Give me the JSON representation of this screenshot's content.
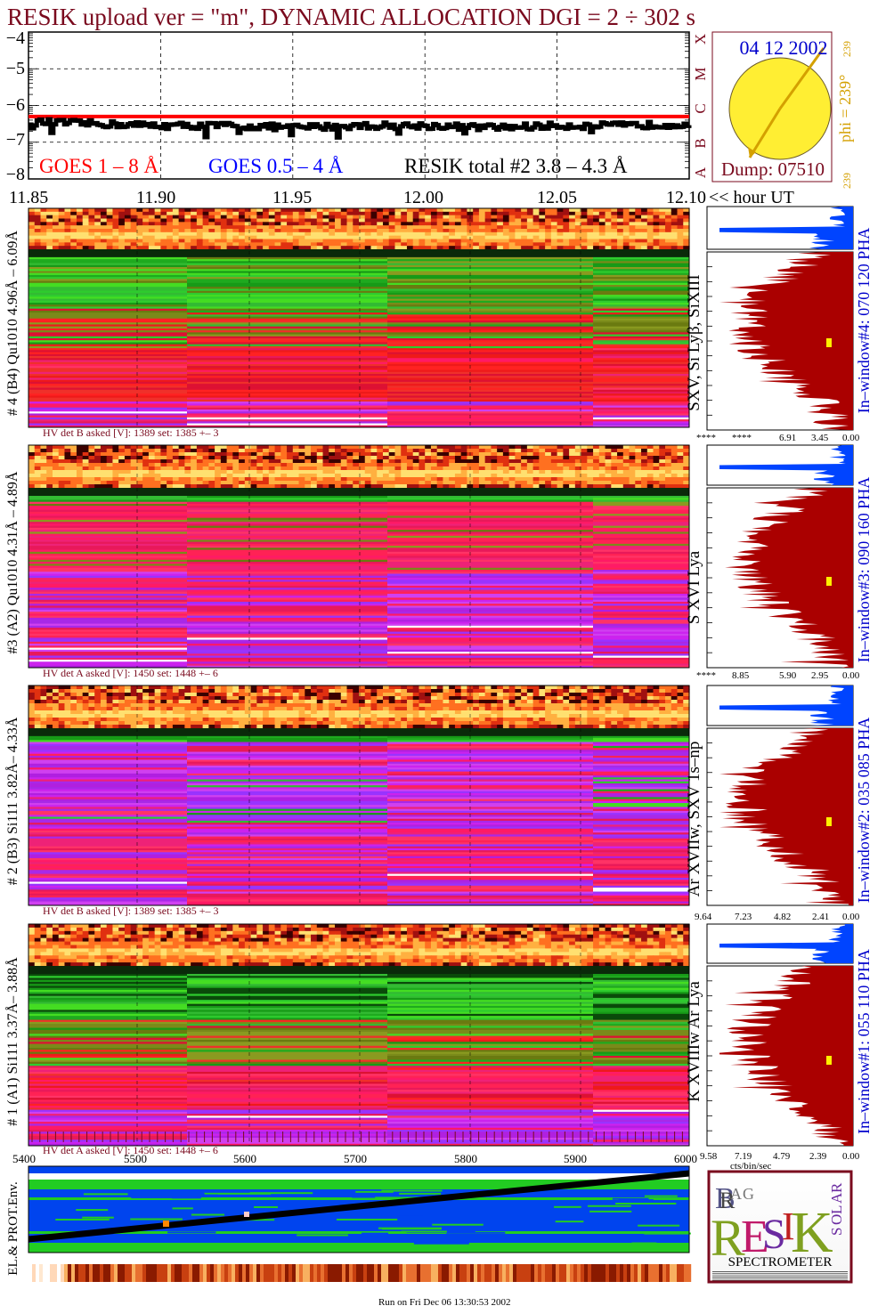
{
  "header": {
    "title": "RESIK upload ver = \"m\", DYNAMIC ALLOCATION  DGI =   2 ÷ 302 s"
  },
  "goes_panel": {
    "legend_goes_long": "GOES 1 – 8 Å",
    "legend_goes_short": "GOES 0.5 – 4 Å",
    "legend_resik": "RESIK total #2  3.8 – 4.3 Å",
    "y_ticks": [
      "−4",
      "−5",
      "−6",
      "−7",
      "−8"
    ],
    "x_ticks": [
      "11.85",
      "11.90",
      "11.95",
      "12.00",
      "12.05",
      "12.10"
    ],
    "x_unit": "<< hour UT",
    "flare_classes": [
      "X",
      "M",
      "C",
      "B",
      "A"
    ]
  },
  "sun_panel": {
    "date": "04 12 2002",
    "dump": "Dump: 07510",
    "phi_label": "phi = 239°",
    "phi_small": "239",
    "phi_bottom": "239"
  },
  "detectors": [
    {
      "left_label": "# 4 (B4) Qu1010 4.96Å – 6.09Å",
      "hv_text": "HV det B asked [V]:  1389 set:  1385 +–    3",
      "line_label": "SXV, Si Lyβ, SiXIII",
      "window_label": "In–window#4:  070 120 PHA",
      "x_ticks": [
        "****",
        "****",
        "6.91",
        "3.45",
        "0.00"
      ]
    },
    {
      "left_label": "#3 (A2) Qu1010  4.31Å – 4.89Å",
      "hv_text": "HV det A asked [V]:  1450 set:  1448 +–    6",
      "line_label": "S XVI Lya",
      "window_label": "In–window#3:  090 160 PHA",
      "x_ticks": [
        "****",
        "8.85",
        "5.90",
        "2.95",
        "0.00"
      ]
    },
    {
      "left_label": "# 2 (B3) Si111  3.82Å– 4.33Å",
      "hv_text": "HV det B asked [V]:  1389 set:  1385 +–    3",
      "line_label": "Ar XVIIw,  SXV 1s–np",
      "window_label": "In–window#2:  035 085 PHA",
      "x_ticks": [
        "9.64",
        "7.23",
        "4.82",
        "2.41",
        "0.00"
      ]
    },
    {
      "left_label": "# 1 (A1) Si111  3.37Å– 3.88Å",
      "hv_text": "HV det A asked [V]:  1450 set:  1448 +–    6",
      "line_label": "K XVIIIw  Ar Lya",
      "window_label": "In–window#1:  055 110 PHA",
      "x_ticks": [
        "9.58",
        "7.19",
        "4.79",
        "2.39",
        "0.00"
      ],
      "x_unit": "cts/bin/sec"
    }
  ],
  "env_panel": {
    "x_ticks": [
      "5400",
      "5500",
      "5600",
      "5700",
      "5800",
      "5900",
      "6000"
    ],
    "side_label": "EL.& PROT.Env."
  },
  "logo": {
    "letters": [
      "B",
      "R",
      "A",
      "G",
      "R",
      "E",
      "S",
      "I",
      "K",
      "S",
      "O",
      "L",
      "A",
      "R"
    ],
    "caption": "SPECTROMETER"
  },
  "footer": {
    "run_text": "Run on Fri Dec 06 13:30:53 2002"
  },
  "colors": {
    "title": "#7a0a1e",
    "goes_long": "#ff0000",
    "goes_short": "#0000ff",
    "resik": "#000000",
    "hist": "#aa0000",
    "phi": "#d4a000"
  },
  "chart_data": {
    "type": "line",
    "title": "",
    "xlabel": "<< hour UT",
    "ylabel": "",
    "xlim": [
      11.85,
      12.1
    ],
    "ylim": [
      -8,
      -4
    ],
    "series": [
      {
        "name": "GOES 1 – 8 Å",
        "x": [
          11.85,
          11.9,
          11.95,
          12.0,
          12.05,
          12.1
        ],
        "values": [
          -6.3,
          -6.3,
          -6.3,
          -6.3,
          -6.3,
          -6.3
        ]
      },
      {
        "name": "RESIK total #2  3.8 – 4.3 Å",
        "x": [
          11.85,
          11.875,
          11.9,
          11.925,
          11.95,
          11.975,
          12.0,
          12.025,
          12.05,
          12.075,
          12.1
        ],
        "values": [
          -6.45,
          -6.5,
          -6.55,
          -6.55,
          -6.6,
          -6.55,
          -6.55,
          -6.6,
          -6.55,
          -6.55,
          -6.5
        ]
      }
    ]
  }
}
